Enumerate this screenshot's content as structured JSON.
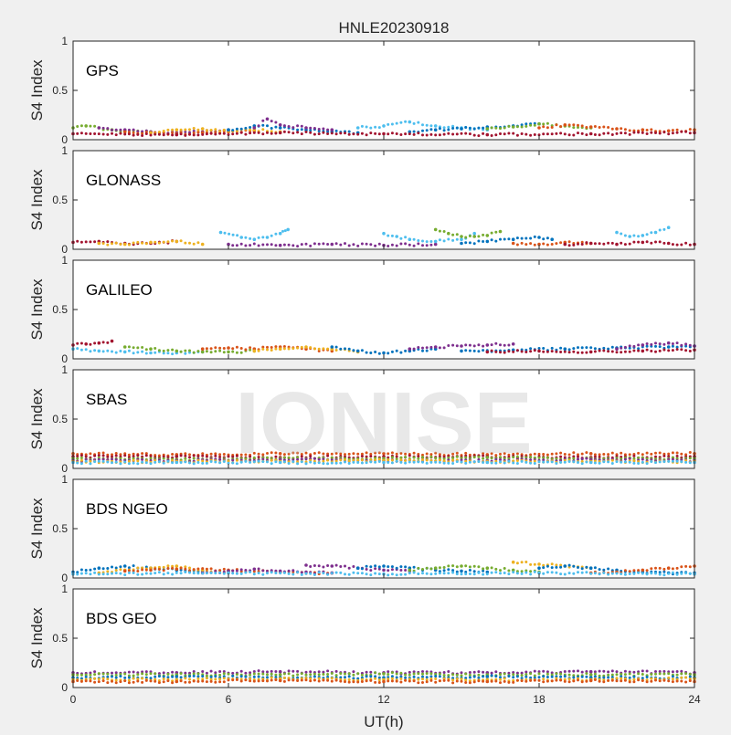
{
  "figure": {
    "title": "HNLE20230918",
    "xlabel": "UT(h)",
    "watermark": "IONISE",
    "x_ticks": [
      "0",
      "6",
      "12",
      "18",
      "24"
    ],
    "y_ticks": [
      "0",
      "0.5",
      "1"
    ]
  },
  "colors": {
    "background": "#f0f0f0",
    "axes_background": "#ffffff",
    "series_palette": [
      "#0072bd",
      "#d95319",
      "#edb120",
      "#7e2f8e",
      "#77ac30",
      "#4dbeee",
      "#a2142f"
    ]
  },
  "chart_data": [
    {
      "type": "scatter",
      "label": "GPS",
      "ylabel": "S4 Index",
      "xlim": [
        0,
        24
      ],
      "ylim": [
        0,
        1
      ],
      "grid": false,
      "series": [
        {
          "color": "#77ac30",
          "x": [
            0.0,
            0.5,
            1.0,
            1.5,
            2.0,
            3.0
          ],
          "y": [
            0.12,
            0.14,
            0.12,
            0.1,
            0.09,
            0.08
          ]
        },
        {
          "color": "#7e2f8e",
          "x": [
            1.0,
            2.0,
            3.0,
            4.0,
            5.0,
            6.0
          ],
          "y": [
            0.12,
            0.1,
            0.08,
            0.07,
            0.08,
            0.1
          ]
        },
        {
          "color": "#d95319",
          "x": [
            2.0,
            3.0,
            4.0,
            5.0,
            6.0,
            7.0
          ],
          "y": [
            0.08,
            0.07,
            0.06,
            0.07,
            0.08,
            0.09
          ]
        },
        {
          "color": "#edb120",
          "x": [
            3.0,
            4.0,
            5.0,
            6.0,
            7.0,
            8.0
          ],
          "y": [
            0.07,
            0.1,
            0.11,
            0.09,
            0.1,
            0.08
          ]
        },
        {
          "color": "#0072bd",
          "x": [
            6.0,
            7.0,
            8.0,
            9.0,
            10.0,
            11.0
          ],
          "y": [
            0.1,
            0.14,
            0.12,
            0.1,
            0.08,
            0.07
          ]
        },
        {
          "color": "#7e2f8e",
          "x": [
            7.0,
            7.5,
            8.0,
            9.0,
            10.0
          ],
          "y": [
            0.12,
            0.21,
            0.15,
            0.12,
            0.1
          ]
        },
        {
          "color": "#4dbeee",
          "x": [
            11.0,
            12.0,
            13.0,
            14.0,
            15.0,
            16.0
          ],
          "y": [
            0.12,
            0.14,
            0.18,
            0.14,
            0.12,
            0.1
          ]
        },
        {
          "color": "#0072bd",
          "x": [
            13.0,
            14.0,
            15.0,
            16.0,
            17.0,
            18.0
          ],
          "y": [
            0.08,
            0.1,
            0.11,
            0.13,
            0.14,
            0.16
          ]
        },
        {
          "color": "#77ac30",
          "x": [
            16.0,
            17.0,
            18.0,
            19.0,
            20.0
          ],
          "y": [
            0.11,
            0.13,
            0.16,
            0.14,
            0.12
          ]
        },
        {
          "color": "#d95319",
          "x": [
            18.0,
            19.0,
            20.0,
            21.0,
            22.0,
            23.0,
            24.0
          ],
          "y": [
            0.12,
            0.15,
            0.13,
            0.11,
            0.1,
            0.09,
            0.1
          ]
        },
        {
          "color": "#a2142f",
          "x": [
            0.0,
            4.0,
            8.0,
            12.0,
            16.0,
            20.0,
            24.0
          ],
          "y": [
            0.06,
            0.05,
            0.07,
            0.06,
            0.05,
            0.06,
            0.07
          ]
        }
      ]
    },
    {
      "type": "scatter",
      "label": "GLONASS",
      "ylabel": "S4 Index",
      "xlim": [
        0,
        24
      ],
      "ylim": [
        0,
        1
      ],
      "grid": false,
      "series": [
        {
          "color": "#a2142f",
          "x": [
            0.0,
            1.0,
            2.0,
            3.0,
            4.0
          ],
          "y": [
            0.07,
            0.08,
            0.06,
            0.06,
            0.08
          ]
        },
        {
          "color": "#edb120",
          "x": [
            1.0,
            2.0,
            3.0,
            4.0,
            5.0
          ],
          "y": [
            0.06,
            0.05,
            0.07,
            0.08,
            0.05
          ]
        },
        {
          "color": "#4dbeee",
          "x": [
            5.7,
            6.5,
            7.0,
            7.5,
            8.0,
            8.3
          ],
          "y": [
            0.17,
            0.12,
            0.1,
            0.12,
            0.16,
            0.2
          ]
        },
        {
          "color": "#7e2f8e",
          "x": [
            6.0,
            8.0,
            10.0,
            12.0,
            14.0
          ],
          "y": [
            0.05,
            0.04,
            0.05,
            0.04,
            0.05
          ]
        },
        {
          "color": "#4dbeee",
          "x": [
            12.0,
            12.5,
            13.0,
            14.0,
            15.0,
            15.5
          ],
          "y": [
            0.16,
            0.13,
            0.1,
            0.08,
            0.1,
            0.16
          ]
        },
        {
          "color": "#77ac30",
          "x": [
            14.0,
            14.5,
            15.0,
            15.5,
            16.0,
            16.5
          ],
          "y": [
            0.2,
            0.16,
            0.13,
            0.13,
            0.14,
            0.18
          ]
        },
        {
          "color": "#0072bd",
          "x": [
            15.0,
            16.0,
            17.0,
            18.0,
            18.5
          ],
          "y": [
            0.06,
            0.08,
            0.1,
            0.12,
            0.1
          ]
        },
        {
          "color": "#d95319",
          "x": [
            17.0,
            18.0,
            19.0,
            20.0
          ],
          "y": [
            0.06,
            0.05,
            0.07,
            0.06
          ]
        },
        {
          "color": "#4dbeee",
          "x": [
            21.0,
            21.5,
            22.0,
            22.5,
            23.0
          ],
          "y": [
            0.17,
            0.13,
            0.14,
            0.17,
            0.22
          ]
        },
        {
          "color": "#a2142f",
          "x": [
            19.0,
            20.0,
            21.0,
            22.0,
            23.0,
            24.0
          ],
          "y": [
            0.05,
            0.06,
            0.05,
            0.07,
            0.06,
            0.05
          ]
        }
      ]
    },
    {
      "type": "scatter",
      "label": "GALILEO",
      "ylabel": "S4 Index",
      "xlim": [
        0,
        24
      ],
      "ylim": [
        0,
        1
      ],
      "grid": false,
      "series": [
        {
          "color": "#a2142f",
          "x": [
            0.0,
            0.5,
            1.0,
            1.5
          ],
          "y": [
            0.14,
            0.15,
            0.16,
            0.18
          ]
        },
        {
          "color": "#4dbeee",
          "x": [
            0.0,
            1.0,
            2.0,
            3.0,
            4.0,
            5.0
          ],
          "y": [
            0.1,
            0.08,
            0.07,
            0.06,
            0.06,
            0.07
          ]
        },
        {
          "color": "#77ac30",
          "x": [
            2.0,
            3.0,
            4.0,
            5.0,
            6.0,
            7.0
          ],
          "y": [
            0.12,
            0.1,
            0.08,
            0.07,
            0.07,
            0.08
          ]
        },
        {
          "color": "#d95319",
          "x": [
            5.0,
            6.0,
            7.0,
            8.0,
            9.0,
            10.0
          ],
          "y": [
            0.1,
            0.11,
            0.1,
            0.12,
            0.1,
            0.08
          ]
        },
        {
          "color": "#edb120",
          "x": [
            7.0,
            8.0,
            9.0,
            10.0,
            11.0
          ],
          "y": [
            0.08,
            0.1,
            0.12,
            0.1,
            0.07
          ]
        },
        {
          "color": "#0072bd",
          "x": [
            10.0,
            11.0,
            12.0,
            13.0,
            14.0
          ],
          "y": [
            0.12,
            0.08,
            0.06,
            0.08,
            0.1
          ]
        },
        {
          "color": "#7e2f8e",
          "x": [
            13.0,
            14.0,
            15.0,
            16.0,
            17.0
          ],
          "y": [
            0.1,
            0.12,
            0.13,
            0.14,
            0.15
          ]
        },
        {
          "color": "#0072bd",
          "x": [
            15.0,
            17.0,
            19.0,
            21.0,
            23.0,
            24.0
          ],
          "y": [
            0.08,
            0.09,
            0.1,
            0.11,
            0.12,
            0.13
          ]
        },
        {
          "color": "#7e2f8e",
          "x": [
            21.0,
            22.0,
            23.0,
            24.0
          ],
          "y": [
            0.1,
            0.14,
            0.16,
            0.13
          ]
        },
        {
          "color": "#a2142f",
          "x": [
            16.0,
            18.0,
            20.0,
            22.0,
            24.0
          ],
          "y": [
            0.07,
            0.08,
            0.07,
            0.08,
            0.09
          ]
        }
      ]
    },
    {
      "type": "scatter",
      "label": "SBAS",
      "ylabel": "S4 Index",
      "xlim": [
        0,
        24
      ],
      "ylim": [
        0,
        1
      ],
      "grid": false,
      "series": [
        {
          "color": "#d95319",
          "x": [
            0.0,
            4.0,
            8.0,
            12.0,
            16.0,
            20.0,
            24.0
          ],
          "y": [
            0.15,
            0.14,
            0.15,
            0.15,
            0.14,
            0.15,
            0.15
          ]
        },
        {
          "color": "#a2142f",
          "x": [
            0.0,
            4.0,
            8.0,
            12.0,
            16.0,
            20.0,
            24.0
          ],
          "y": [
            0.12,
            0.12,
            0.11,
            0.12,
            0.12,
            0.11,
            0.12
          ]
        },
        {
          "color": "#77ac30",
          "x": [
            0.0,
            4.0,
            8.0,
            12.0,
            16.0,
            20.0,
            24.0
          ],
          "y": [
            0.1,
            0.09,
            0.1,
            0.1,
            0.11,
            0.1,
            0.1
          ]
        },
        {
          "color": "#7e2f8e",
          "x": [
            0.0,
            4.0,
            8.0,
            12.0,
            16.0,
            20.0,
            24.0
          ],
          "y": [
            0.08,
            0.08,
            0.09,
            0.08,
            0.08,
            0.09,
            0.08
          ]
        },
        {
          "color": "#edb120",
          "x": [
            0.0,
            4.0,
            8.0,
            12.0,
            16.0,
            20.0,
            24.0
          ],
          "y": [
            0.07,
            0.07,
            0.07,
            0.08,
            0.07,
            0.07,
            0.07
          ]
        },
        {
          "color": "#4dbeee",
          "x": [
            0.0,
            4.0,
            8.0,
            12.0,
            16.0,
            20.0,
            24.0
          ],
          "y": [
            0.06,
            0.06,
            0.06,
            0.06,
            0.06,
            0.06,
            0.06
          ]
        }
      ]
    },
    {
      "type": "scatter",
      "label": "BDS NGEO",
      "ylabel": "S4 Index",
      "xlim": [
        0,
        24
      ],
      "ylim": [
        0,
        1
      ],
      "grid": false,
      "series": [
        {
          "color": "#0072bd",
          "x": [
            0.0,
            1.0,
            2.0,
            3.0,
            4.0,
            5.0
          ],
          "y": [
            0.06,
            0.1,
            0.12,
            0.1,
            0.08,
            0.07
          ]
        },
        {
          "color": "#edb120",
          "x": [
            1.0,
            2.0,
            3.0,
            4.0,
            5.0,
            6.0
          ],
          "y": [
            0.05,
            0.08,
            0.1,
            0.12,
            0.08,
            0.06
          ]
        },
        {
          "color": "#d95319",
          "x": [
            2.0,
            3.0,
            4.0,
            6.0,
            8.0,
            10.0
          ],
          "y": [
            0.07,
            0.08,
            0.09,
            0.08,
            0.06,
            0.05
          ]
        },
        {
          "color": "#7e2f8e",
          "x": [
            5.0,
            6.0,
            7.0,
            8.0,
            9.0,
            10.0
          ],
          "y": [
            0.05,
            0.07,
            0.09,
            0.07,
            0.06,
            0.05
          ]
        },
        {
          "color": "#7e2f8e",
          "x": [
            9.0,
            10.0,
            11.0,
            12.0,
            13.0
          ],
          "y": [
            0.13,
            0.12,
            0.1,
            0.08,
            0.07
          ]
        },
        {
          "color": "#0072bd",
          "x": [
            11.0,
            12.0,
            13.0,
            14.0,
            15.0,
            16.0
          ],
          "y": [
            0.1,
            0.12,
            0.1,
            0.08,
            0.07,
            0.06
          ]
        },
        {
          "color": "#77ac30",
          "x": [
            13.0,
            14.0,
            15.0,
            16.0,
            17.0,
            18.0
          ],
          "y": [
            0.08,
            0.1,
            0.12,
            0.1,
            0.08,
            0.06
          ]
        },
        {
          "color": "#edb120",
          "x": [
            17.0,
            18.0,
            19.0,
            20.0
          ],
          "y": [
            0.16,
            0.14,
            0.12,
            0.1
          ]
        },
        {
          "color": "#0072bd",
          "x": [
            18.0,
            19.0,
            20.0,
            21.0,
            22.0,
            23.0,
            24.0
          ],
          "y": [
            0.1,
            0.12,
            0.1,
            0.08,
            0.06,
            0.05,
            0.05
          ]
        },
        {
          "color": "#d95319",
          "x": [
            20.0,
            21.0,
            22.0,
            23.0,
            24.0
          ],
          "y": [
            0.05,
            0.06,
            0.08,
            0.1,
            0.12
          ]
        },
        {
          "color": "#4dbeee",
          "x": [
            0.0,
            6.0,
            12.0,
            18.0,
            24.0
          ],
          "y": [
            0.04,
            0.05,
            0.04,
            0.05,
            0.04
          ]
        }
      ]
    },
    {
      "type": "scatter",
      "label": "BDS GEO",
      "ylabel": "S4 Index",
      "xlim": [
        0,
        24
      ],
      "ylim": [
        0,
        1
      ],
      "grid": false,
      "series": [
        {
          "color": "#7e2f8e",
          "x": [
            0.0,
            4.0,
            8.0,
            12.0,
            16.0,
            20.0,
            24.0
          ],
          "y": [
            0.15,
            0.15,
            0.16,
            0.15,
            0.15,
            0.16,
            0.15
          ]
        },
        {
          "color": "#77ac30",
          "x": [
            0.0,
            4.0,
            8.0,
            12.0,
            16.0,
            20.0,
            24.0
          ],
          "y": [
            0.13,
            0.13,
            0.13,
            0.14,
            0.13,
            0.13,
            0.13
          ]
        },
        {
          "color": "#0072bd",
          "x": [
            0.0,
            4.0,
            8.0,
            12.0,
            16.0,
            20.0,
            24.0
          ],
          "y": [
            0.1,
            0.11,
            0.1,
            0.1,
            0.11,
            0.1,
            0.1
          ]
        },
        {
          "color": "#edb120",
          "x": [
            0.0,
            4.0,
            8.0,
            12.0,
            16.0,
            20.0,
            24.0
          ],
          "y": [
            0.08,
            0.08,
            0.09,
            0.08,
            0.08,
            0.08,
            0.09
          ]
        },
        {
          "color": "#d95319",
          "x": [
            0.0,
            4.0,
            8.0,
            12.0,
            16.0,
            20.0,
            24.0
          ],
          "y": [
            0.06,
            0.06,
            0.07,
            0.06,
            0.06,
            0.07,
            0.06
          ]
        }
      ]
    }
  ]
}
